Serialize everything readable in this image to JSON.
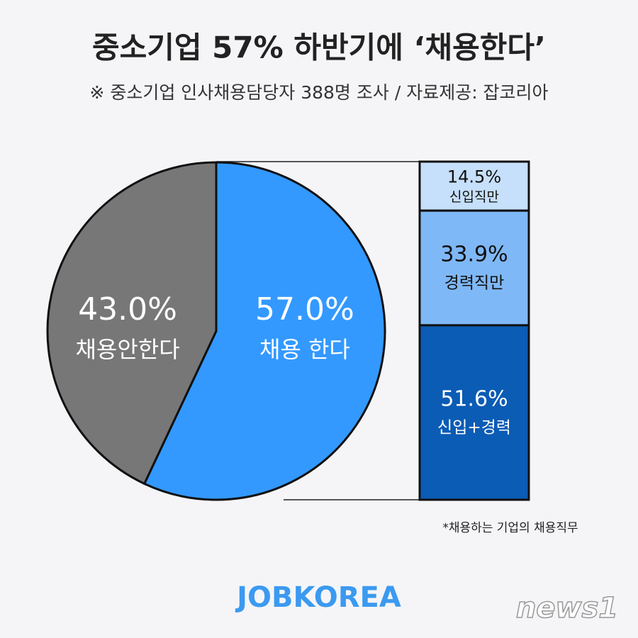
{
  "header": {
    "title": "중소기업 57% 하반기에 ‘채용한다’",
    "subtitle": "※ 중소기업 인사채용담당자 388명 조사 / 자료제공: 잡코리아"
  },
  "chart_data": [
    {
      "type": "pie",
      "categories": [
        "채용안한다",
        "채용 한다"
      ],
      "values": [
        43.0,
        57.0
      ],
      "value_labels": [
        "43.0%",
        "57.0%"
      ],
      "colors": [
        "#777777",
        "#3399ff"
      ]
    },
    {
      "type": "stacked_bar",
      "categories": [
        "신입직만",
        "경력직만",
        "신입+경력"
      ],
      "values": [
        14.5,
        33.9,
        51.6
      ],
      "value_labels": [
        "14.5%",
        "33.9%",
        "51.6%"
      ],
      "colors": [
        "#c6dffa",
        "#7fb8f6",
        "#0b5cb5"
      ],
      "note": "*채용하는 기업의 채용직무"
    }
  ],
  "footer": {
    "logo": "JOBKOREA",
    "watermark": "news1"
  }
}
